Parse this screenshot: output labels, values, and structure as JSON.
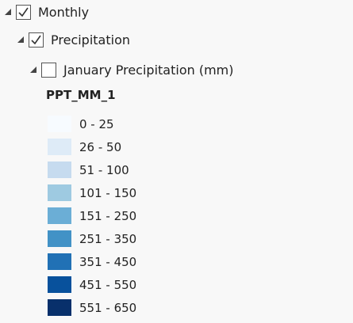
{
  "tree": {
    "monthly": {
      "label": "Monthly",
      "checked": true,
      "expanded": true
    },
    "precipitation": {
      "label": "Precipitation",
      "checked": true,
      "expanded": true
    },
    "layer": {
      "label": "January Precipitation (mm)",
      "checked": false,
      "expanded": true
    }
  },
  "legend": {
    "field": "PPT_MM_1",
    "items": [
      {
        "label": "0 - 25",
        "color": "#f7fbff"
      },
      {
        "label": "26 - 50",
        "color": "#deebf7"
      },
      {
        "label": "51 - 100",
        "color": "#c6dbef"
      },
      {
        "label": "101 - 150",
        "color": "#9ecae1"
      },
      {
        "label": "151 - 250",
        "color": "#6baed6"
      },
      {
        "label": "251 - 350",
        "color": "#4292c6"
      },
      {
        "label": "351 - 450",
        "color": "#2171b5"
      },
      {
        "label": "451 - 550",
        "color": "#08519c"
      },
      {
        "label": "551 - 650",
        "color": "#08306b"
      }
    ]
  }
}
